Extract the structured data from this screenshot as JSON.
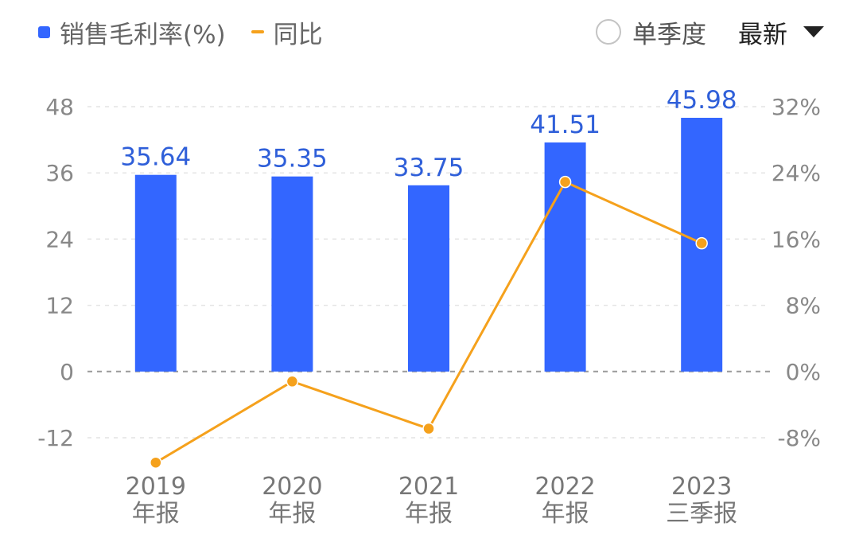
{
  "legend": {
    "bar_label": "销售毛利率(%)",
    "line_label": "同比"
  },
  "controls": {
    "single_quarter_label": "单季度",
    "period_label": "最新"
  },
  "colors": {
    "bar": "#3366ff",
    "line": "#f5a11c",
    "data_label": "#2f5fd9"
  },
  "chart_data": {
    "type": "bar",
    "categories": [
      [
        "2019",
        "年报"
      ],
      [
        "2020",
        "年报"
      ],
      [
        "2021",
        "年报"
      ],
      [
        "2022",
        "年报"
      ],
      [
        "2023",
        "三季报"
      ]
    ],
    "series": [
      {
        "name": "销售毛利率(%)",
        "type": "bar",
        "axis": "left",
        "values": [
          35.64,
          35.35,
          33.75,
          41.51,
          45.98
        ],
        "data_labels": [
          "35.64",
          "35.35",
          "33.75",
          "41.51",
          "45.98"
        ]
      },
      {
        "name": "同比",
        "type": "line",
        "axis": "right",
        "unit": "%",
        "values": [
          -11.0,
          -1.2,
          -6.9,
          22.9,
          15.5
        ]
      }
    ],
    "left_axis": {
      "ticks": [
        48,
        36,
        24,
        12,
        0,
        -12
      ],
      "tick_labels": [
        "48",
        "36",
        "24",
        "12",
        "0",
        "-12"
      ],
      "range": [
        -12,
        48
      ]
    },
    "right_axis": {
      "ticks": [
        32,
        24,
        16,
        8,
        0,
        -8
      ],
      "tick_labels": [
        "32%",
        "24%",
        "16%",
        "8%",
        "0%",
        "-8%"
      ],
      "range": [
        -8,
        32
      ]
    },
    "grid": true
  }
}
